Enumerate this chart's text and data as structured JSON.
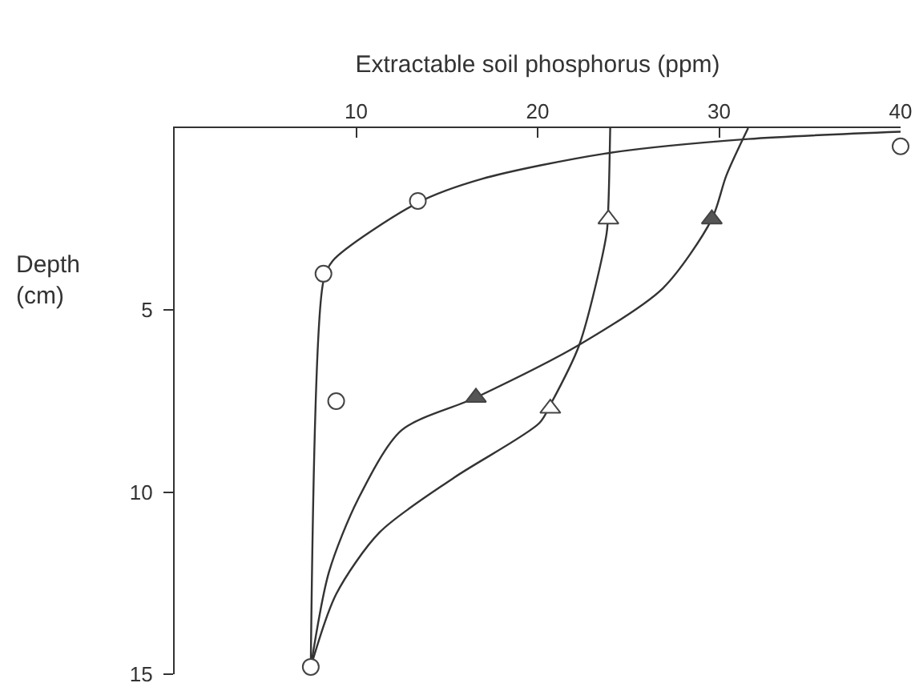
{
  "chart_data": {
    "type": "scatter",
    "xlabel": "Extractable soil phosphorus (ppm)",
    "ylabel": "Depth (cm)",
    "xlim": [
      0,
      40
    ],
    "xticks": [
      10,
      20,
      30,
      40
    ],
    "ylim": [
      15,
      0
    ],
    "yticks": [
      5,
      10,
      15
    ],
    "series": [
      {
        "type": "line",
        "color": "#333333",
        "x": [
          7.5,
          8.2,
          8.7,
          13.4,
          16.9,
          23.7,
          31.6,
          40
        ],
        "values": [
          14.8,
          4.2,
          3.65,
          2.05,
          1.4,
          0.7,
          0.3,
          0.1
        ],
        "marker": "none",
        "line_style": "solid"
      },
      {
        "type": "line",
        "color": "#333333",
        "x": [
          24.0,
          23.9,
          23.8,
          22.3,
          20.7,
          20.1,
          15.4,
          11.3,
          8.9,
          7.5
        ],
        "values": [
          0,
          2.1,
          2.9,
          5.95,
          7.6,
          8.1,
          9.6,
          11.1,
          12.8,
          14.8
        ],
        "marker": "none",
        "line_style": "solid"
      },
      {
        "type": "line",
        "color": "#333333",
        "x": [
          31.6,
          30.4,
          29.6,
          26.9,
          22.3,
          16.6,
          12.5,
          10.1,
          8.5,
          7.5
        ],
        "values": [
          0,
          1.3,
          2.5,
          4.4,
          5.95,
          7.4,
          8.3,
          10.2,
          12.2,
          14.8
        ],
        "marker": "none",
        "line_style": "solid"
      },
      {
        "color": "#ffffff",
        "x": [
          40,
          13.4,
          8.2,
          8.9,
          7.5
        ],
        "values": [
          0.5,
          2,
          4,
          7.5,
          14.8
        ],
        "marker": "circle"
      },
      {
        "color": "#ffffff",
        "x": [
          23.9,
          20.7
        ],
        "values": [
          2.5,
          7.7
        ],
        "marker": "triangle"
      },
      {
        "color": "#555555",
        "x": [
          29.6,
          16.6
        ],
        "values": [
          2.5,
          7.4
        ],
        "marker": "triangle"
      }
    ]
  }
}
